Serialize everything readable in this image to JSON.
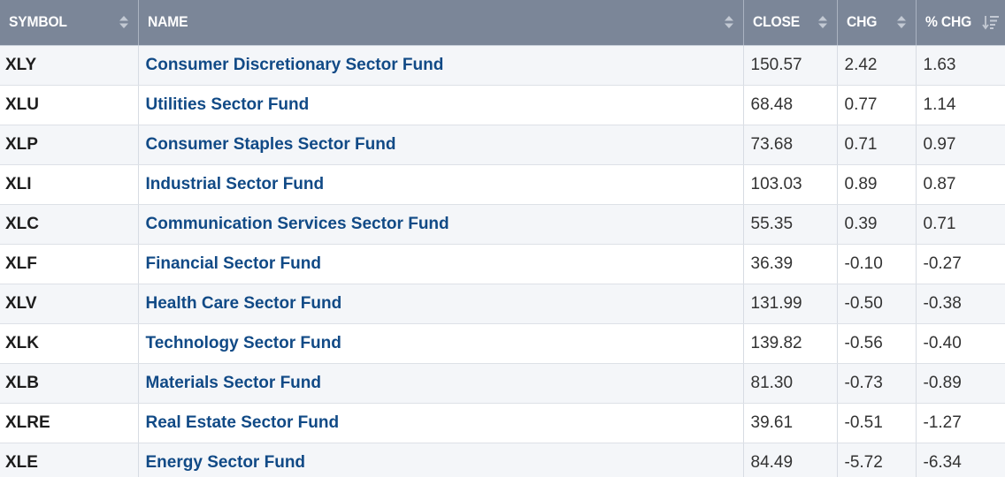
{
  "table": {
    "columns": [
      {
        "key": "symbol",
        "label": "SYMBOL"
      },
      {
        "key": "name",
        "label": "NAME"
      },
      {
        "key": "close",
        "label": "CLOSE"
      },
      {
        "key": "chg",
        "label": "CHG"
      },
      {
        "key": "pct_chg",
        "label": "% CHG"
      }
    ],
    "sorted_by": "pct_chg",
    "sort_direction": "descending",
    "rows": [
      {
        "symbol": "XLY",
        "name": "Consumer Discretionary Sector Fund",
        "close": "150.57",
        "chg": "2.42",
        "pct_chg": "1.63"
      },
      {
        "symbol": "XLU",
        "name": "Utilities Sector Fund",
        "close": "68.48",
        "chg": "0.77",
        "pct_chg": "1.14"
      },
      {
        "symbol": "XLP",
        "name": "Consumer Staples Sector Fund",
        "close": "73.68",
        "chg": "0.71",
        "pct_chg": "0.97"
      },
      {
        "symbol": "XLI",
        "name": "Industrial Sector Fund",
        "close": "103.03",
        "chg": "0.89",
        "pct_chg": "0.87"
      },
      {
        "symbol": "XLC",
        "name": "Communication Services Sector Fund",
        "close": "55.35",
        "chg": "0.39",
        "pct_chg": "0.71"
      },
      {
        "symbol": "XLF",
        "name": "Financial Sector Fund",
        "close": "36.39",
        "chg": "-0.10",
        "pct_chg": "-0.27"
      },
      {
        "symbol": "XLV",
        "name": "Health Care Sector Fund",
        "close": "131.99",
        "chg": "-0.50",
        "pct_chg": "-0.38"
      },
      {
        "symbol": "XLK",
        "name": "Technology Sector Fund",
        "close": "139.82",
        "chg": "-0.56",
        "pct_chg": "-0.40"
      },
      {
        "symbol": "XLB",
        "name": "Materials Sector Fund",
        "close": "81.30",
        "chg": "-0.73",
        "pct_chg": "-0.89"
      },
      {
        "symbol": "XLRE",
        "name": "Real Estate Sector Fund",
        "close": "39.61",
        "chg": "-0.51",
        "pct_chg": "-1.27"
      },
      {
        "symbol": "XLE",
        "name": "Energy Sector Fund",
        "close": "84.49",
        "chg": "-5.72",
        "pct_chg": "-6.34"
      }
    ]
  },
  "icons": {
    "sortable": "sort-updown-icon",
    "sorted_desc": "sort-descending-icon"
  },
  "colors": {
    "header_bg": "#7b8698",
    "link": "#114a86",
    "row_alt": "#f4f6f9"
  }
}
